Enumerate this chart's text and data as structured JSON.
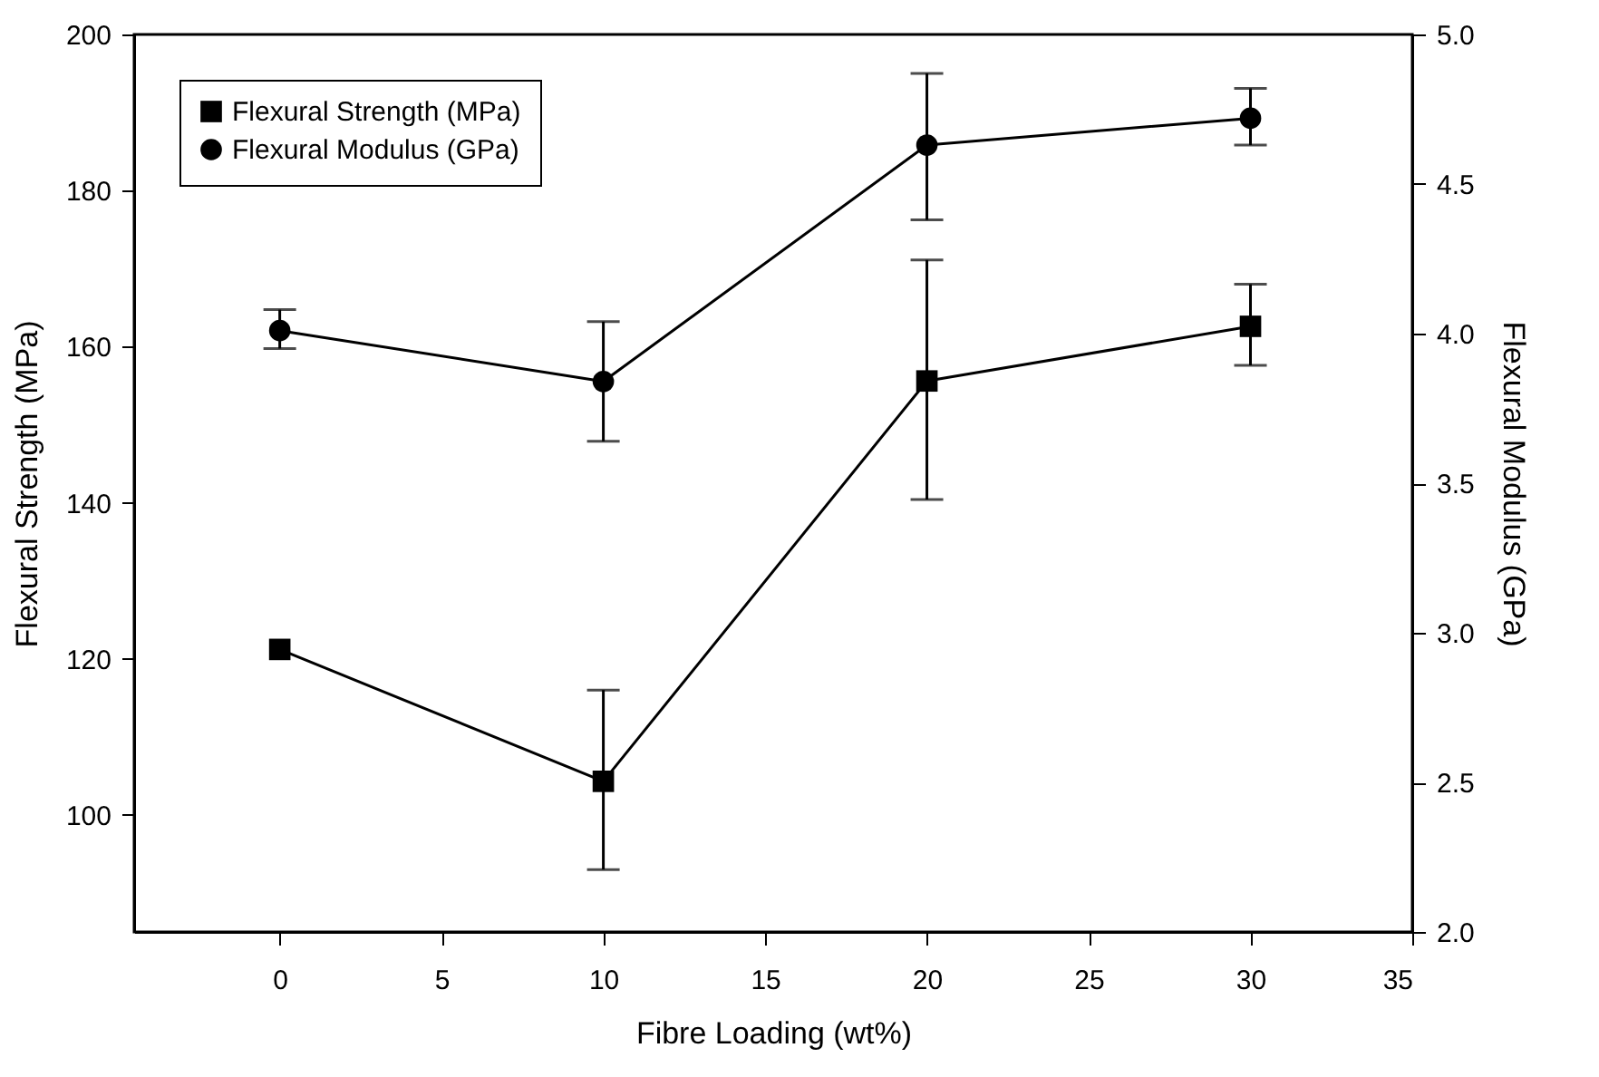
{
  "chart_data": {
    "type": "line",
    "xlabel": "Fibre Loading (wt%)",
    "ylabel": "Flexural Strength (MPa)",
    "y2label": "Flexural Modulus (GPa)",
    "x": [
      0,
      10,
      20,
      30
    ],
    "series": [
      {
        "name": "Flexural Strength (MPa)",
        "color": "#000000",
        "marker": "square",
        "values": [
          121.2,
          104.3,
          155.6,
          162.6
        ],
        "errors": [
          null,
          [
            93.0,
            116.0
          ],
          [
            140.4,
            171.1
          ],
          [
            157.6,
            168.0
          ]
        ]
      },
      {
        "name": "Flexural Modulus (GPa)",
        "color": "#000000",
        "marker": "circle",
        "axis": "y2",
        "values": [
          4.01,
          3.84,
          4.63,
          4.72
        ],
        "errors": [
          [
            3.95,
            4.08
          ],
          [
            3.64,
            4.04
          ],
          [
            4.38,
            4.87
          ],
          [
            4.63,
            4.82
          ]
        ]
      }
    ],
    "xlim": [
      -4.5,
      35
    ],
    "xticks": [
      0,
      5,
      10,
      15,
      20,
      25,
      30,
      35
    ],
    "ylim": [
      85,
      200
    ],
    "yticks": [
      100,
      120,
      140,
      160,
      180,
      200
    ],
    "y2lim": [
      2.0,
      5.0
    ],
    "y2ticks": [
      {
        "value": 2,
        "label": "2.0"
      },
      {
        "value": 2.5,
        "label": "2.5"
      },
      {
        "value": 3,
        "label": "3.0"
      },
      {
        "value": 3.5,
        "label": "3.5"
      },
      {
        "value": 4,
        "label": "4.0"
      },
      {
        "value": 4.5,
        "label": "4.5"
      },
      {
        "value": 5,
        "label": "5.0"
      }
    ],
    "legend": "top left",
    "grid": false,
    "line_style": "solid"
  }
}
